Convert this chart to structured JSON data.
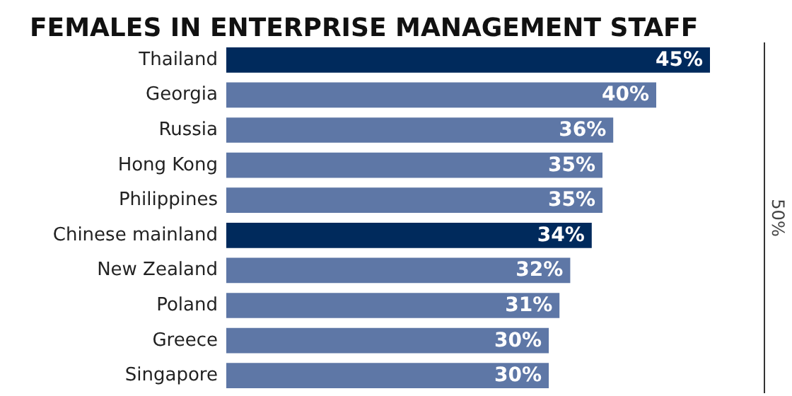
{
  "chart_data": {
    "type": "bar",
    "orientation": "horizontal",
    "title": "FEMALES IN ENTERPRISE MANAGEMENT STAFF",
    "categories": [
      "Thailand",
      "Georgia",
      "Russia",
      "Hong Kong",
      "Philippines",
      "Chinese mainland",
      "New Zealand",
      "Poland",
      "Greece",
      "Singapore"
    ],
    "values": [
      45,
      40,
      36,
      35,
      35,
      34,
      32,
      31,
      30,
      30
    ],
    "colors": [
      "#002a5c",
      "#5e77a6",
      "#5e77a6",
      "#5e77a6",
      "#5e77a6",
      "#002a5c",
      "#5e77a6",
      "#5e77a6",
      "#5e77a6",
      "#5e77a6"
    ],
    "value_labels": [
      "45%",
      "40%",
      "36%",
      "35%",
      "35%",
      "34%",
      "32%",
      "31%",
      "30%",
      "30%"
    ],
    "tick_labels": "y",
    "grid": false,
    "ref_lines": [
      {
        "axis": "x",
        "value": 50,
        "label": "50%",
        "color": "#333333"
      }
    ]
  }
}
